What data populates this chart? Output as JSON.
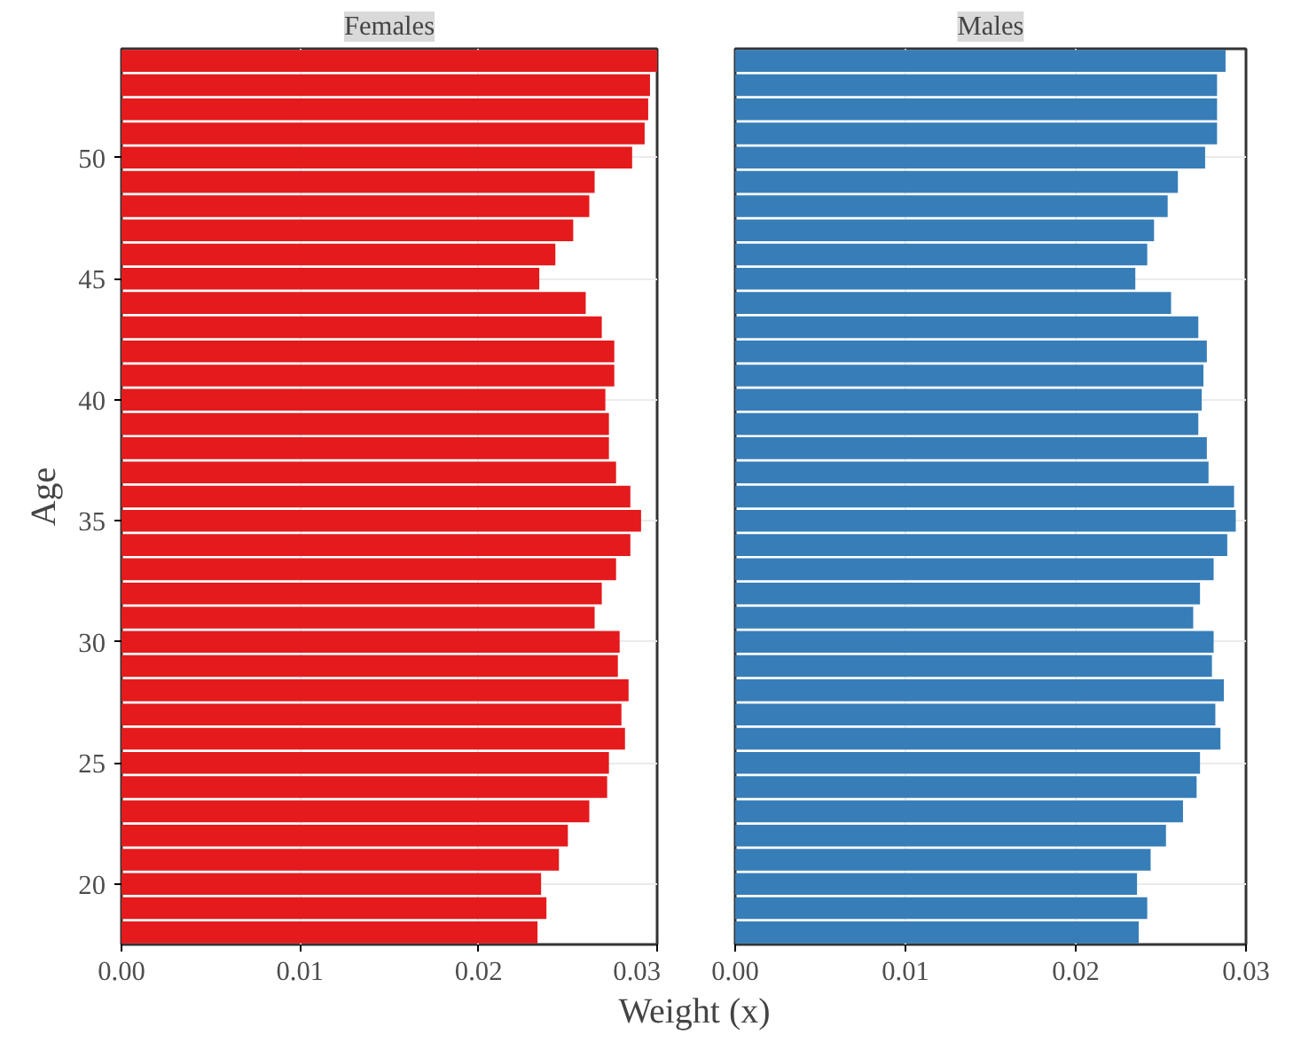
{
  "chart_data": [
    {
      "type": "bar",
      "orientation": "horizontal",
      "title": "Females",
      "ylabel": "Age",
      "xlabel": "Weight (x)",
      "x": [
        54,
        53,
        52,
        51,
        50,
        49,
        48,
        47,
        46,
        45,
        44,
        43,
        42,
        41,
        40,
        39,
        38,
        37,
        36,
        35,
        34,
        33,
        32,
        31,
        30,
        29,
        28,
        27,
        26,
        25,
        24,
        23,
        22,
        21,
        20,
        19,
        18
      ],
      "series": [
        {
          "color": "#e41a1c",
          "values": [
            0.03,
            0.0296,
            0.0295,
            0.0293,
            0.0286,
            0.0265,
            0.0262,
            0.0253,
            0.0243,
            0.0234,
            0.026,
            0.0269,
            0.0276,
            0.0276,
            0.0271,
            0.0273,
            0.0273,
            0.0277,
            0.0285,
            0.0291,
            0.0285,
            0.0277,
            0.0269,
            0.0265,
            0.0279,
            0.0278,
            0.0284,
            0.028,
            0.0282,
            0.0273,
            0.0272,
            0.0262,
            0.025,
            0.0245,
            0.0235,
            0.0238,
            0.0233
          ]
        }
      ],
      "xlim": [
        0,
        0.03
      ],
      "xticks": [
        {
          "value": 0,
          "label": "0.00"
        },
        {
          "value": 0.01,
          "label": "0.01"
        },
        {
          "value": 0.02,
          "label": "0.02"
        },
        {
          "value": 0.03,
          "label": "0.03"
        }
      ],
      "ylim": [
        17.5,
        54.5
      ],
      "yticks": [
        20,
        25,
        30,
        35,
        40,
        45,
        50
      ],
      "grid": true
    },
    {
      "type": "bar",
      "orientation": "horizontal",
      "title": "Males",
      "x": [
        54,
        53,
        52,
        51,
        50,
        49,
        48,
        47,
        46,
        45,
        44,
        43,
        42,
        41,
        40,
        39,
        38,
        37,
        36,
        35,
        34,
        33,
        32,
        31,
        30,
        29,
        28,
        27,
        26,
        25,
        24,
        23,
        22,
        21,
        20,
        19,
        18
      ],
      "series": [
        {
          "color": "#377eb8",
          "values": [
            0.0288,
            0.0283,
            0.0283,
            0.0283,
            0.0276,
            0.026,
            0.0254,
            0.0246,
            0.0242,
            0.0235,
            0.0256,
            0.0272,
            0.0277,
            0.0275,
            0.0274,
            0.0272,
            0.0277,
            0.0278,
            0.0293,
            0.0294,
            0.0289,
            0.0281,
            0.0273,
            0.0269,
            0.0281,
            0.028,
            0.0287,
            0.0282,
            0.0285,
            0.0273,
            0.0271,
            0.0263,
            0.0253,
            0.0244,
            0.0236,
            0.0242,
            0.0237
          ]
        }
      ],
      "xlim": [
        0,
        0.03
      ],
      "xticks": [
        {
          "value": 0,
          "label": "0.00"
        },
        {
          "value": 0.01,
          "label": "0.01"
        },
        {
          "value": 0.02,
          "label": "0.02"
        },
        {
          "value": 0.03,
          "label": "0.03"
        }
      ],
      "ylim": [
        17.5,
        54.5
      ],
      "yticks": [
        20,
        25,
        30,
        35,
        40,
        45,
        50
      ],
      "grid": true,
      "tick_labels": "x"
    }
  ]
}
